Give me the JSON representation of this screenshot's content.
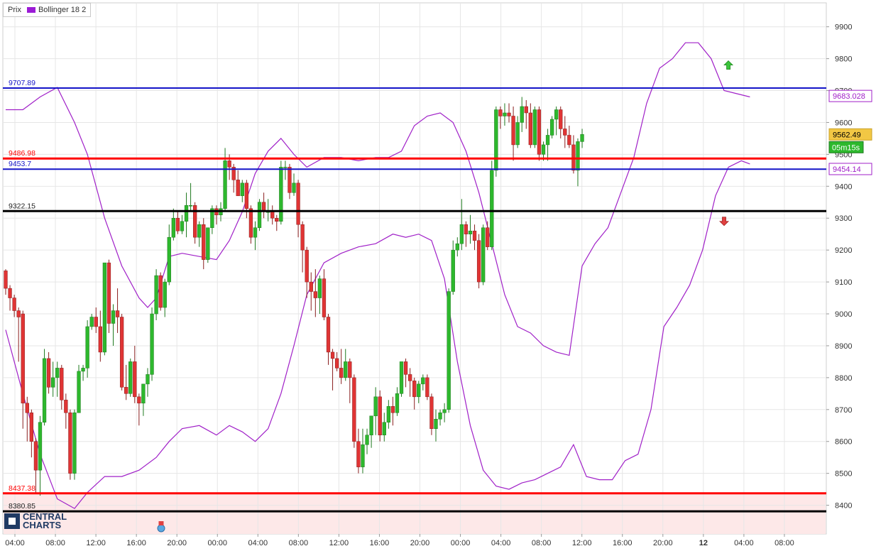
{
  "legend": {
    "price_label": "Prix",
    "indicator_label": "Bollinger 18 2",
    "indicator_color": "#9b1bd6"
  },
  "logo": {
    "line1": "CENTRAL",
    "line2": "CHARTS"
  },
  "colors": {
    "up": "#2db82d",
    "down": "#e03434",
    "band": "#a020c8",
    "blue_line": "#1414c8",
    "red_line": "#ff0000",
    "black_line": "#000000",
    "grid": "#e6e6e6",
    "zone": "#fde8e8"
  },
  "chart_data": {
    "type": "candlestick",
    "y_range": [
      8310,
      9975
    ],
    "y_ticks": [
      8400,
      8500,
      8600,
      8700,
      8800,
      8900,
      9000,
      9100,
      9200,
      9300,
      9400,
      9500,
      9600,
      9700,
      9800,
      9900
    ],
    "x_ticks": [
      "04:00",
      "08:00",
      "12:00",
      "16:00",
      "20:00",
      "00:00",
      "04:00",
      "08:00",
      "12:00",
      "16:00",
      "20:00",
      "00:00",
      "04:00",
      "08:00",
      "12:00",
      "16:00",
      "20:00",
      "12",
      "04:00",
      "08:00"
    ],
    "x_ticks_bold": [
      false,
      false,
      false,
      false,
      false,
      false,
      false,
      false,
      false,
      false,
      false,
      false,
      false,
      false,
      false,
      false,
      false,
      true,
      false,
      false
    ],
    "candles": [
      [
        9135,
        9140,
        9060,
        9080
      ],
      [
        9080,
        9090,
        9010,
        9050
      ],
      [
        9050,
        9060,
        8990,
        9010
      ],
      [
        9010,
        9020,
        8850,
        8990
      ],
      [
        9000,
        9010,
        8640,
        8720
      ],
      [
        8720,
        8740,
        8600,
        8690
      ],
      [
        8690,
        8700,
        8550,
        8600
      ],
      [
        8600,
        8610,
        8440,
        8510
      ],
      [
        8510,
        8680,
        8430,
        8660
      ],
      [
        8660,
        8890,
        8650,
        8860
      ],
      [
        8860,
        8880,
        8750,
        8770
      ],
      [
        8770,
        8850,
        8740,
        8800
      ],
      [
        8800,
        8850,
        8740,
        8830
      ],
      [
        8830,
        8840,
        8700,
        8730
      ],
      [
        8730,
        8750,
        8640,
        8690
      ],
      [
        8690,
        8700,
        8480,
        8500
      ],
      [
        8500,
        8700,
        8480,
        8690
      ],
      [
        8690,
        8840,
        8690,
        8820
      ],
      [
        8820,
        8840,
        8790,
        8830
      ],
      [
        8830,
        8980,
        8800,
        8960
      ],
      [
        8960,
        9000,
        8950,
        8990
      ],
      [
        8990,
        9020,
        8940,
        8960
      ],
      [
        8960,
        9010,
        8850,
        8880
      ],
      [
        8880,
        9160,
        8870,
        9160
      ],
      [
        9160,
        9170,
        8940,
        8970
      ],
      [
        8970,
        9030,
        8900,
        9010
      ],
      [
        9010,
        9080,
        8940,
        8990
      ],
      [
        8990,
        9000,
        8760,
        8770
      ],
      [
        8770,
        8840,
        8730,
        8750
      ],
      [
        8750,
        8860,
        8740,
        8850
      ],
      [
        8850,
        8900,
        8720,
        8740
      ],
      [
        8740,
        8750,
        8650,
        8720
      ],
      [
        8720,
        8770,
        8680,
        8780
      ],
      [
        8780,
        8830,
        8740,
        8810
      ],
      [
        8810,
        9020,
        8790,
        9000
      ],
      [
        9000,
        9140,
        8980,
        9120
      ],
      [
        9120,
        9130,
        9010,
        9020
      ],
      [
        9020,
        9110,
        8990,
        9100
      ],
      [
        9100,
        9280,
        9090,
        9240
      ],
      [
        9240,
        9330,
        9230,
        9300
      ],
      [
        9300,
        9320,
        9250,
        9260
      ],
      [
        9260,
        9310,
        9250,
        9290
      ],
      [
        9290,
        9380,
        9240,
        9340
      ],
      [
        9340,
        9410,
        9320,
        9340
      ],
      [
        9340,
        9350,
        9220,
        9240
      ],
      [
        9240,
        9290,
        9210,
        9280
      ],
      [
        9280,
        9300,
        9140,
        9170
      ],
      [
        9170,
        9270,
        9160,
        9270
      ],
      [
        9270,
        9340,
        9250,
        9330
      ],
      [
        9330,
        9340,
        9280,
        9310
      ],
      [
        9310,
        9350,
        9290,
        9330
      ],
      [
        9330,
        9520,
        9320,
        9480
      ],
      [
        9480,
        9500,
        9420,
        9460
      ],
      [
        9460,
        9470,
        9380,
        9420
      ],
      [
        9420,
        9450,
        9370,
        9370
      ],
      [
        9370,
        9420,
        9350,
        9410
      ],
      [
        9410,
        9420,
        9300,
        9330
      ],
      [
        9330,
        9340,
        9220,
        9240
      ],
      [
        9240,
        9290,
        9200,
        9270
      ],
      [
        9270,
        9360,
        9260,
        9350
      ],
      [
        9350,
        9380,
        9300,
        9320
      ],
      [
        9320,
        9360,
        9290,
        9320
      ],
      [
        9320,
        9340,
        9280,
        9300
      ],
      [
        9300,
        9310,
        9260,
        9290
      ],
      [
        9290,
        9480,
        9280,
        9460
      ],
      [
        9460,
        9480,
        9420,
        9460
      ],
      [
        9460,
        9470,
        9360,
        9380
      ],
      [
        9380,
        9440,
        9370,
        9410
      ],
      [
        9410,
        9420,
        9240,
        9280
      ],
      [
        9280,
        9290,
        9130,
        9200
      ],
      [
        9200,
        9210,
        9050,
        9100
      ],
      [
        9100,
        9130,
        9010,
        9070
      ],
      [
        9070,
        9140,
        8990,
        9050
      ],
      [
        9050,
        9120,
        9000,
        9110
      ],
      [
        9110,
        9140,
        8980,
        8990
      ],
      [
        8990,
        9000,
        8840,
        8880
      ],
      [
        8880,
        8890,
        8760,
        8860
      ],
      [
        8860,
        8880,
        8820,
        8830
      ],
      [
        8830,
        8890,
        8780,
        8800
      ],
      [
        8800,
        8890,
        8790,
        8850
      ],
      [
        8850,
        8860,
        8720,
        8800
      ],
      [
        8800,
        8810,
        8580,
        8600
      ],
      [
        8600,
        8640,
        8500,
        8520
      ],
      [
        8520,
        8640,
        8500,
        8590
      ],
      [
        8590,
        8640,
        8560,
        8620
      ],
      [
        8620,
        8680,
        8580,
        8680
      ],
      [
        8680,
        8770,
        8620,
        8740
      ],
      [
        8740,
        8760,
        8600,
        8620
      ],
      [
        8620,
        8690,
        8600,
        8660
      ],
      [
        8660,
        8730,
        8640,
        8710
      ],
      [
        8710,
        8740,
        8650,
        8690
      ],
      [
        8690,
        8770,
        8680,
        8750
      ],
      [
        8750,
        8850,
        8740,
        8850
      ],
      [
        8850,
        8860,
        8770,
        8810
      ],
      [
        8810,
        8830,
        8740,
        8790
      ],
      [
        8790,
        8800,
        8700,
        8740
      ],
      [
        8740,
        8790,
        8720,
        8780
      ],
      [
        8780,
        8810,
        8760,
        8800
      ],
      [
        8800,
        8810,
        8730,
        8740
      ],
      [
        8740,
        8750,
        8620,
        8640
      ],
      [
        8640,
        8700,
        8600,
        8670
      ],
      [
        8670,
        8700,
        8650,
        8690
      ],
      [
        8690,
        8720,
        8660,
        8700
      ],
      [
        8700,
        9080,
        8690,
        9070
      ],
      [
        9070,
        9230,
        9060,
        9200
      ],
      [
        9200,
        9240,
        9180,
        9220
      ],
      [
        9220,
        9360,
        9200,
        9280
      ],
      [
        9280,
        9290,
        9210,
        9250
      ],
      [
        9250,
        9310,
        9220,
        9260
      ],
      [
        9260,
        9280,
        9200,
        9230
      ],
      [
        9230,
        9250,
        9080,
        9100
      ],
      [
        9100,
        9280,
        9090,
        9270
      ],
      [
        9270,
        9290,
        9200,
        9210
      ],
      [
        9210,
        9480,
        9200,
        9450
      ],
      [
        9450,
        9650,
        9430,
        9640
      ],
      [
        9640,
        9650,
        9580,
        9620
      ],
      [
        9620,
        9660,
        9590,
        9630
      ],
      [
        9630,
        9660,
        9600,
        9620
      ],
      [
        9620,
        9650,
        9480,
        9530
      ],
      [
        9530,
        9620,
        9520,
        9600
      ],
      [
        9600,
        9680,
        9570,
        9650
      ],
      [
        9650,
        9670,
        9580,
        9630
      ],
      [
        9630,
        9660,
        9520,
        9530
      ],
      [
        9530,
        9650,
        9520,
        9640
      ],
      [
        9640,
        9650,
        9480,
        9500
      ],
      [
        9500,
        9540,
        9480,
        9530
      ],
      [
        9530,
        9580,
        9480,
        9560
      ],
      [
        9560,
        9620,
        9550,
        9610
      ],
      [
        9610,
        9650,
        9560,
        9640
      ],
      [
        9640,
        9650,
        9550,
        9580
      ],
      [
        9580,
        9620,
        9520,
        9560
      ],
      [
        9560,
        9590,
        9520,
        9530
      ],
      [
        9530,
        9560,
        9440,
        9450
      ],
      [
        9450,
        9550,
        9400,
        9540
      ],
      [
        9540,
        9580,
        9520,
        9562.49
      ]
    ],
    "bollinger": {
      "name": "Bollinger 18 2",
      "upper": [
        [
          0,
          9640
        ],
        [
          4,
          9640
        ],
        [
          8,
          9680
        ],
        [
          12,
          9710
        ],
        [
          16,
          9600
        ],
        [
          19,
          9500
        ],
        [
          23,
          9300
        ],
        [
          27,
          9150
        ],
        [
          31,
          9050
        ],
        [
          33,
          9020
        ],
        [
          35,
          9050
        ],
        [
          38,
          9180
        ],
        [
          41,
          9190
        ],
        [
          45,
          9180
        ],
        [
          49,
          9170
        ],
        [
          52,
          9230
        ],
        [
          55,
          9320
        ],
        [
          58,
          9440
        ],
        [
          61,
          9510
        ],
        [
          64,
          9550
        ],
        [
          67,
          9500
        ],
        [
          70,
          9460
        ],
        [
          74,
          9490
        ],
        [
          78,
          9490
        ],
        [
          82,
          9480
        ],
        [
          86,
          9490
        ],
        [
          89,
          9490
        ],
        [
          92,
          9510
        ],
        [
          95,
          9590
        ],
        [
          98,
          9620
        ],
        [
          101,
          9630
        ],
        [
          104,
          9600
        ],
        [
          107,
          9510
        ],
        [
          110,
          9380
        ],
        [
          113,
          9220
        ],
        [
          116,
          9060
        ],
        [
          119,
          8960
        ],
        [
          122,
          8940
        ],
        [
          125,
          8900
        ],
        [
          128,
          8880
        ],
        [
          131,
          8870
        ],
        [
          134,
          9150
        ],
        [
          137,
          9220
        ],
        [
          140,
          9270
        ],
        [
          143,
          9380
        ],
        [
          146,
          9490
        ],
        [
          149,
          9660
        ],
        [
          152,
          9770
        ],
        [
          155,
          9800
        ],
        [
          158,
          9850
        ],
        [
          161,
          9850
        ],
        [
          164,
          9800
        ],
        [
          167,
          9700
        ],
        [
          170,
          9690
        ],
        [
          173,
          9680
        ]
      ],
      "lower": [
        [
          0,
          8950
        ],
        [
          4,
          8750
        ],
        [
          8,
          8560
        ],
        [
          12,
          8420
        ],
        [
          16,
          8390
        ],
        [
          19,
          8440
        ],
        [
          23,
          8490
        ],
        [
          27,
          8490
        ],
        [
          31,
          8510
        ],
        [
          35,
          8550
        ],
        [
          38,
          8600
        ],
        [
          41,
          8640
        ],
        [
          45,
          8650
        ],
        [
          49,
          8620
        ],
        [
          52,
          8650
        ],
        [
          55,
          8630
        ],
        [
          58,
          8600
        ],
        [
          61,
          8640
        ],
        [
          64,
          8750
        ],
        [
          67,
          8900
        ],
        [
          70,
          9060
        ],
        [
          74,
          9160
        ],
        [
          78,
          9190
        ],
        [
          82,
          9210
        ],
        [
          86,
          9220
        ],
        [
          90,
          9250
        ],
        [
          93,
          9240
        ],
        [
          96,
          9250
        ],
        [
          99,
          9230
        ],
        [
          102,
          9110
        ],
        [
          105,
          8850
        ],
        [
          108,
          8650
        ],
        [
          111,
          8510
        ],
        [
          114,
          8460
        ],
        [
          117,
          8450
        ],
        [
          120,
          8470
        ],
        [
          123,
          8480
        ],
        [
          126,
          8500
        ],
        [
          129,
          8520
        ],
        [
          132,
          8590
        ],
        [
          135,
          8490
        ],
        [
          138,
          8480
        ],
        [
          141,
          8480
        ],
        [
          144,
          8540
        ],
        [
          147,
          8560
        ],
        [
          150,
          8700
        ],
        [
          153,
          8960
        ],
        [
          156,
          9020
        ],
        [
          159,
          9090
        ],
        [
          162,
          9200
        ],
        [
          165,
          9370
        ],
        [
          168,
          9460
        ],
        [
          171,
          9480
        ],
        [
          173,
          9470
        ]
      ]
    },
    "lines": [
      {
        "value": 9707.89,
        "label": "9707.89",
        "color": "blue"
      },
      {
        "value": 9486.98,
        "label": "9486.98",
        "color": "red"
      },
      {
        "value": 9453.7,
        "label": "9453.7",
        "color": "blue"
      },
      {
        "value": 9322.15,
        "label": "9322.15",
        "color": "black"
      },
      {
        "value": 8437.38,
        "label": "8437.38",
        "color": "red"
      },
      {
        "value": 8380.85,
        "label": "8380.85",
        "color": "black"
      }
    ],
    "price_tags": [
      {
        "value": 9683.028,
        "label": "9683.028",
        "style": "band"
      },
      {
        "value": 9562.49,
        "label": "9562.49",
        "style": "price"
      },
      {
        "value": 9454.14,
        "label": "9454.14",
        "style": "band"
      }
    ],
    "countdown": "05m15s",
    "grid": true,
    "zone_below": 8437.38,
    "arrows": [
      {
        "candle": 168,
        "value": 9780,
        "direction": "up"
      },
      {
        "candle": 167,
        "value": 9290,
        "direction": "down"
      }
    ]
  }
}
